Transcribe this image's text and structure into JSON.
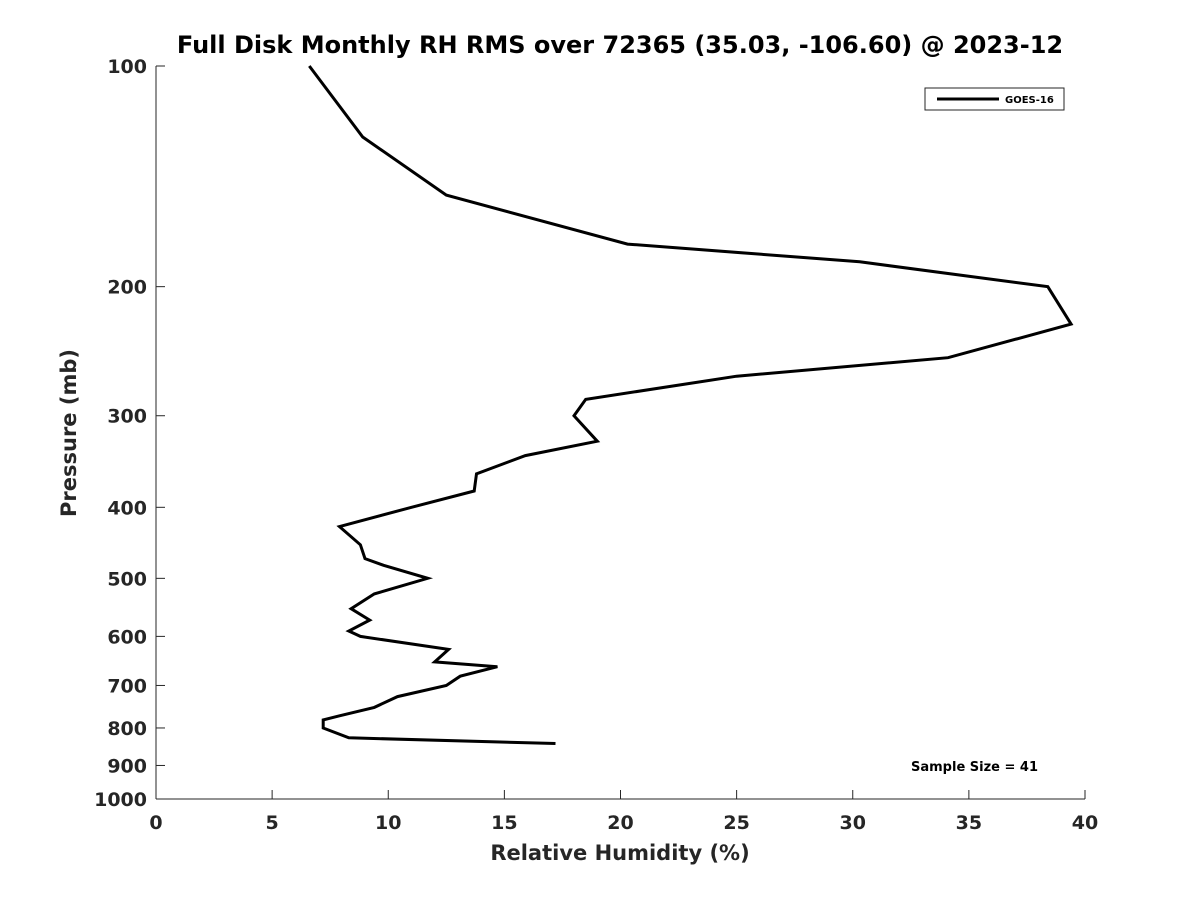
{
  "chart_data": {
    "type": "line",
    "title": "Full Disk Monthly RH RMS over 72365 (35.03, -106.60) @ 2023-12",
    "xlabel": "Relative Humidity (%)",
    "ylabel": "Pressure (mb)",
    "xlim": [
      0,
      40
    ],
    "ylim": [
      100,
      1000
    ],
    "yscale": "log",
    "y_reversed": true,
    "xticks": [
      0,
      5,
      10,
      15,
      20,
      25,
      30,
      35,
      40
    ],
    "yticks": [
      100,
      200,
      300,
      400,
      500,
      600,
      700,
      800,
      900,
      1000
    ],
    "grid": false,
    "legend_position": "top-right",
    "annotation": "Sample Size = 41",
    "series": [
      {
        "name": "GOES-16",
        "color": "#000000",
        "x": [
          6.6,
          8.9,
          12.5,
          20.3,
          30.3,
          38.4,
          39.4,
          34.1,
          25.0,
          18.5,
          18.0,
          19.0,
          15.9,
          13.8,
          13.7,
          11.0,
          7.9,
          8.8,
          9.0,
          9.8,
          11.7,
          9.4,
          8.4,
          9.2,
          8.3,
          8.8,
          12.6,
          12.0,
          14.7,
          13.1,
          12.5,
          10.4,
          9.4,
          7.9,
          7.2,
          7.2,
          8.3,
          17.2
        ],
        "y": [
          100,
          125,
          150,
          175,
          185,
          200,
          225,
          250,
          265,
          285,
          300,
          325,
          340,
          360,
          380,
          400,
          425,
          450,
          470,
          480,
          500,
          525,
          550,
          570,
          590,
          600,
          625,
          650,
          660,
          680,
          700,
          725,
          750,
          770,
          780,
          800,
          825,
          840
        ]
      }
    ]
  }
}
